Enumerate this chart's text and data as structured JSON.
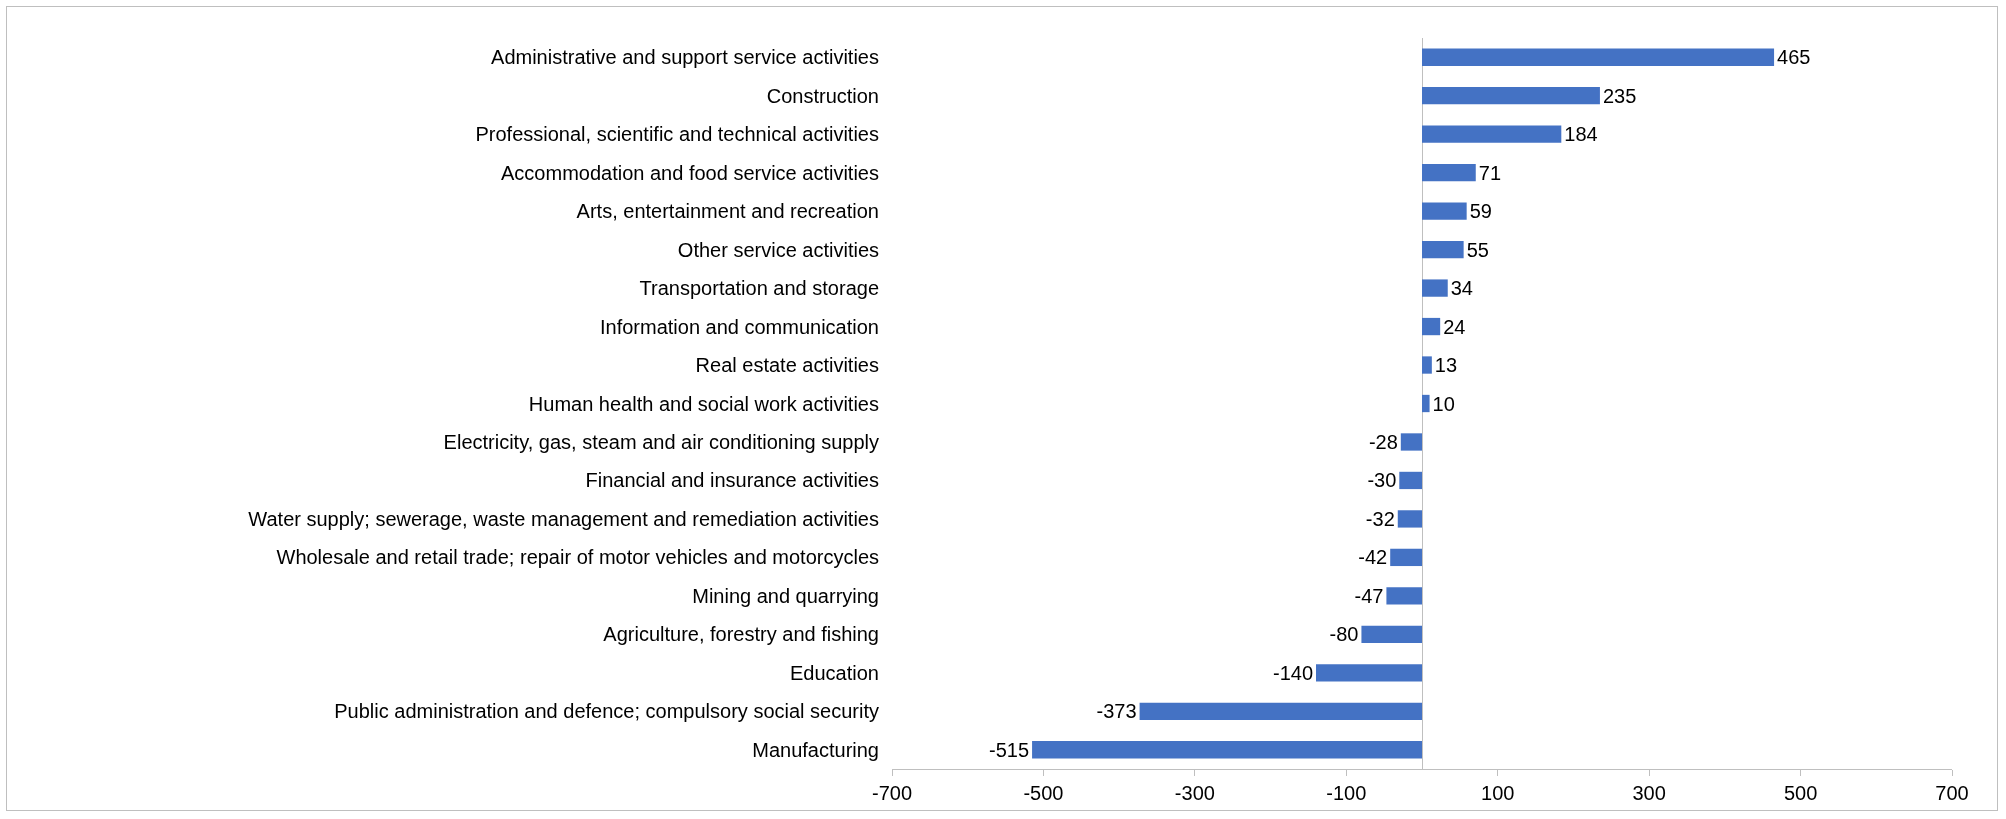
{
  "chart_data": {
    "type": "bar",
    "orientation": "horizontal",
    "categories": [
      "Administrative and support service activities",
      "Construction",
      "Professional, scientific and technical activities",
      "Accommodation and food service activities",
      "Arts, entertainment and recreation",
      "Other service activities",
      "Transportation and storage",
      "Information and communication",
      "Real estate activities",
      "Human health and social work activities",
      "Electricity, gas, steam and air conditioning supply",
      "Financial and insurance activities",
      "Water supply; sewerage, waste management and remediation activities",
      "Wholesale and retail trade; repair of motor vehicles and motorcycles",
      "Mining and quarrying",
      "Agriculture, forestry and fishing",
      "Education",
      "Public administration and defence; compulsory social security",
      "Manufacturing"
    ],
    "values": [
      465,
      235,
      184,
      71,
      59,
      55,
      34,
      24,
      13,
      10,
      -28,
      -30,
      -32,
      -42,
      -47,
      -80,
      -140,
      -373,
      -515
    ],
    "color": "#4472c4",
    "xlim": [
      -700,
      700
    ],
    "xticks": [
      -700,
      -500,
      -300,
      -100,
      100,
      300,
      500,
      700
    ],
    "grid": false,
    "data_labels": true
  }
}
